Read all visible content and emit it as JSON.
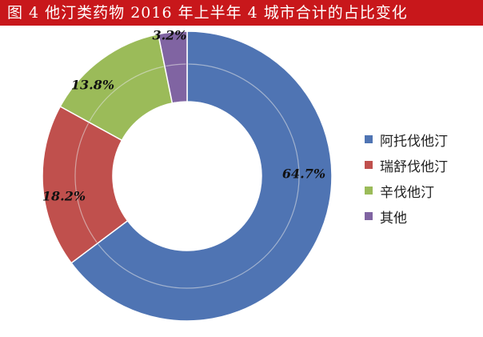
{
  "title": "图 4  他汀类药物 2016 年上半年 4 城市合计的占比变化",
  "colors": {
    "title_bg": "#c8171b",
    "title_text": "#ffffff",
    "ring_divider": "#e6e6e6"
  },
  "chart_data": {
    "type": "pie",
    "variant": "donut",
    "start_angle": "12 o'clock",
    "direction": "clockwise",
    "legend_position": "right",
    "series": [
      {
        "name": "阿托伐他汀",
        "value": 64.7,
        "label": "64.7%",
        "color": "#4f74b3"
      },
      {
        "name": "瑞舒伐他汀",
        "value": 18.2,
        "label": "18.2%",
        "color": "#c0504d"
      },
      {
        "name": "辛伐他汀",
        "value": 13.8,
        "label": "13.8%",
        "color": "#9bbb59"
      },
      {
        "name": "其他",
        "value": 3.2,
        "label": "3.2%",
        "color": "#8064a2"
      }
    ]
  }
}
